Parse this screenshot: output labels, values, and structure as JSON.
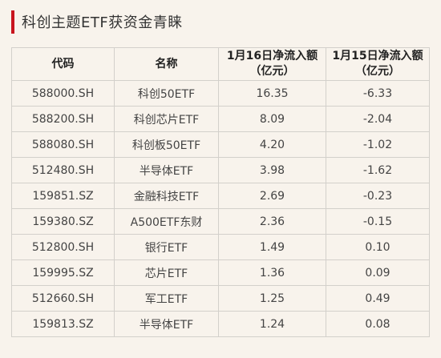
{
  "title": "科创主题ETF获资金青睐",
  "colors": {
    "accent": "#c8141e",
    "background": "#f8f3ec",
    "grid": "#d3d0cb"
  },
  "table": {
    "headers": [
      [
        "代码"
      ],
      [
        "名称"
      ],
      [
        "1月16日净流入额",
        "（亿元）"
      ],
      [
        "1月15日净流入额",
        "（亿元）"
      ]
    ],
    "rows": [
      [
        "588000.SH",
        "科创50ETF",
        "16.35",
        "-6.33"
      ],
      [
        "588200.SH",
        "科创芯片ETF",
        "8.09",
        "-2.04"
      ],
      [
        "588080.SH",
        "科创板50ETF",
        "4.20",
        "-1.02"
      ],
      [
        "512480.SH",
        "半导体ETF",
        "3.98",
        "-1.62"
      ],
      [
        "159851.SZ",
        "金融科技ETF",
        "2.69",
        "-0.23"
      ],
      [
        "159380.SZ",
        "A500ETF东财",
        "2.36",
        "-0.15"
      ],
      [
        "512800.SH",
        "银行ETF",
        "1.49",
        "0.10"
      ],
      [
        "159995.SZ",
        "芯片ETF",
        "1.36",
        "0.09"
      ],
      [
        "512660.SH",
        "军工ETF",
        "1.25",
        "0.49"
      ],
      [
        "159813.SZ",
        "半导体ETF",
        "1.24",
        "0.08"
      ]
    ]
  }
}
